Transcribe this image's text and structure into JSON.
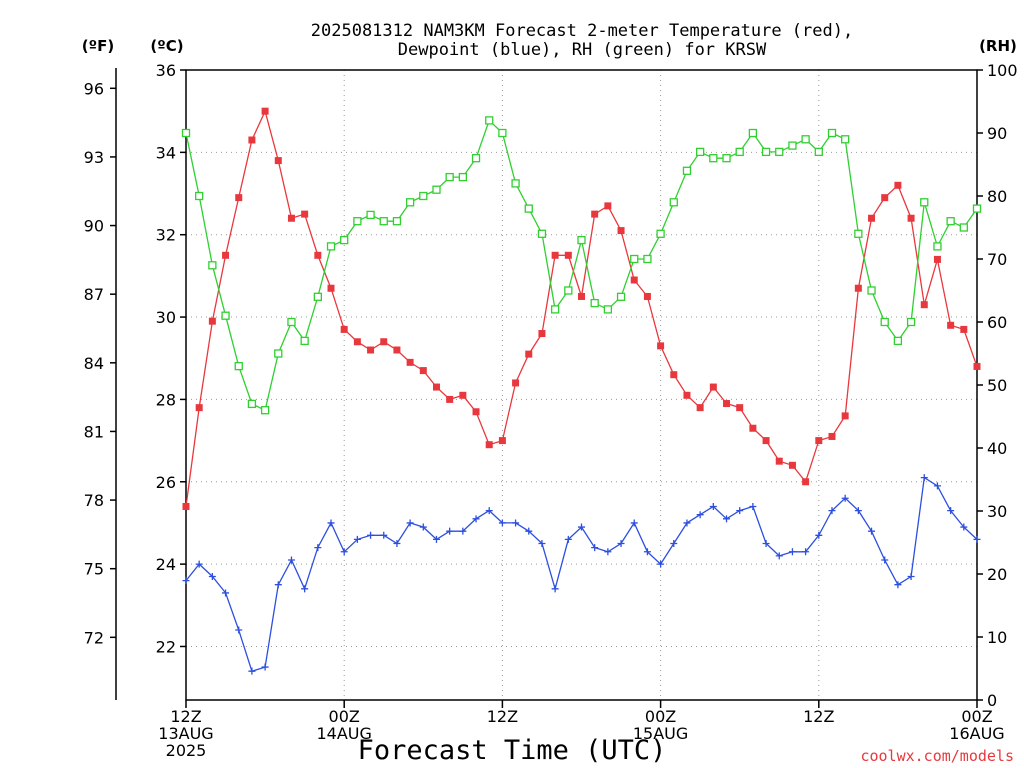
{
  "title_line1": "2025081312 NAM3KM Forecast 2-meter Temperature (red),",
  "title_line2": "Dewpoint (blue), RH (green) for KRSW",
  "units": {
    "fahrenheit": "(ºF)",
    "celsius": "(ºC)",
    "rh": "(RH)"
  },
  "xlabel": "Forecast Time (UTC)",
  "credit": "coolwx.com/models",
  "x_ticks": [
    {
      "lines": [
        "12Z",
        "13AUG",
        "2025"
      ]
    },
    {
      "lines": [
        "00Z",
        "14AUG"
      ]
    },
    {
      "lines": [
        "12Z"
      ]
    },
    {
      "lines": [
        "00Z",
        "15AUG"
      ]
    },
    {
      "lines": [
        "12Z"
      ]
    },
    {
      "lines": [
        "00Z",
        "16AUG"
      ]
    }
  ],
  "chart_data": {
    "type": "line",
    "title": "2025081312 NAM3KM Forecast 2-meter Temperature (red), Dewpoint (blue), RH (green) for KRSW",
    "xlabel": "Forecast Time (UTC)",
    "x_unit": "hours from 2025-08-13 12Z",
    "x": [
      0,
      1,
      2,
      3,
      4,
      5,
      6,
      7,
      8,
      9,
      10,
      11,
      12,
      13,
      14,
      15,
      16,
      17,
      18,
      19,
      20,
      21,
      22,
      23,
      24,
      25,
      26,
      27,
      28,
      29,
      30,
      31,
      32,
      33,
      34,
      35,
      36,
      37,
      38,
      39,
      40,
      41,
      42,
      43,
      44,
      45,
      46,
      47,
      48,
      49,
      50,
      51,
      52,
      53,
      54,
      55,
      56,
      57,
      58,
      59,
      60
    ],
    "xlim": [
      0,
      60
    ],
    "xticks": [
      0,
      12,
      24,
      36,
      48,
      60
    ],
    "celsius_axis": {
      "ylim": [
        20.7,
        36
      ],
      "ticks": [
        22,
        24,
        26,
        28,
        30,
        32,
        34,
        36
      ]
    },
    "fahrenheit_axis": {
      "ticks": [
        72,
        75,
        78,
        81,
        84,
        87,
        90,
        93,
        96
      ]
    },
    "rh_axis": {
      "ylim": [
        0,
        100
      ],
      "ticks": [
        0,
        10,
        20,
        30,
        40,
        50,
        60,
        70,
        80,
        90,
        100
      ]
    },
    "series": [
      {
        "axis": "celsius",
        "color": "#e8383e",
        "marker": "filled-square",
        "values": [
          25.4,
          27.8,
          29.9,
          31.5,
          32.9,
          34.3,
          35.0,
          33.8,
          32.4,
          32.5,
          31.5,
          30.7,
          29.7,
          29.4,
          29.2,
          29.4,
          29.2,
          28.9,
          28.7,
          28.3,
          28.0,
          28.1,
          27.7,
          26.9,
          27.0,
          28.4,
          29.1,
          29.6,
          31.5,
          31.5,
          30.5,
          32.5,
          32.7,
          32.1,
          30.9,
          30.5,
          29.3,
          28.6,
          28.1,
          27.8,
          28.3,
          27.9,
          27.8,
          27.3,
          27.0,
          26.5,
          26.4,
          26.0,
          27.0,
          27.1,
          27.6,
          30.7,
          32.4,
          32.9,
          33.2,
          32.4,
          30.3,
          31.4,
          29.8,
          29.7,
          28.8
        ]
      },
      {
        "axis": "celsius",
        "color": "#2d4fe0",
        "marker": "plus",
        "values": [
          23.6,
          24.0,
          23.7,
          23.3,
          22.4,
          21.4,
          21.5,
          23.5,
          24.1,
          23.4,
          24.4,
          25.0,
          24.3,
          24.6,
          24.7,
          24.7,
          24.5,
          25.0,
          24.9,
          24.6,
          24.8,
          24.8,
          25.1,
          25.3,
          25.0,
          25.0,
          24.8,
          24.5,
          23.4,
          24.6,
          24.9,
          24.4,
          24.3,
          24.5,
          25.0,
          24.3,
          24.0,
          24.5,
          25.0,
          25.2,
          25.4,
          25.1,
          25.3,
          25.4,
          24.5,
          24.2,
          24.3,
          24.3,
          24.7,
          25.3,
          25.6,
          25.3,
          24.8,
          24.1,
          23.5,
          23.7,
          26.1,
          25.9,
          25.3,
          24.9,
          24.6
        ]
      },
      {
        "axis": "rh",
        "color": "#2fd02f",
        "marker": "open-square",
        "values": [
          90,
          80,
          69,
          61,
          53,
          47,
          46,
          55,
          60,
          57,
          64,
          72,
          73,
          76,
          77,
          76,
          76,
          79,
          80,
          81,
          83,
          83,
          86,
          92,
          90,
          82,
          78,
          74,
          62,
          65,
          73,
          63,
          62,
          64,
          70,
          70,
          74,
          79,
          84,
          87,
          86,
          86,
          87,
          90,
          87,
          87,
          88,
          89,
          87,
          90,
          89,
          74,
          65,
          60,
          57,
          60,
          79,
          72,
          76,
          75,
          78
        ]
      }
    ]
  }
}
